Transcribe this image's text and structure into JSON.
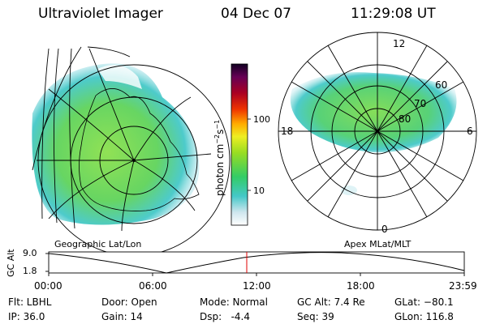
{
  "header": {
    "instrument": "Ultraviolet Imager",
    "date": "04 Dec 07",
    "time": "11:29:08 UT"
  },
  "colorbar": {
    "unit_label": "photon cm",
    "unit_exp1": "−2",
    "unit_mid": "s",
    "unit_exp2": "−1",
    "ticks": [
      {
        "label": "100",
        "value": 100
      },
      {
        "label": "10",
        "value": 10
      }
    ]
  },
  "left_panel": {
    "title": "Geographic Lat/Lon"
  },
  "right_panel": {
    "title": "Apex MLat/MLT",
    "mlt_labels": {
      "top": "12",
      "bottom": "0",
      "left": "18",
      "right": "6"
    },
    "lat_labels": [
      "60",
      "70",
      "80"
    ]
  },
  "altitude_plot": {
    "ylabel": "GC Alt",
    "y_ticks": [
      "9.0",
      "1.8"
    ],
    "x_ticks": [
      "00:00",
      "06:00",
      "12:00",
      "18:00",
      "23:59"
    ],
    "marker_time": "11:29"
  },
  "info": {
    "filter": "Flt: LBHL",
    "ip": "IP: 36.0",
    "door": "Door: Open",
    "gain": "Gain: 14",
    "mode": "Mode: Normal",
    "dsp": "Dsp:   -4.4",
    "gc_alt": "GC Alt: 7.4 Re",
    "seq": "Seq: 39",
    "glat": "GLat: −80.1",
    "glon": "GLon: 116.8"
  },
  "colors": {
    "marker": "#e00000",
    "aurora_main": "#5fd35a",
    "aurora_edge": "#44c8c8"
  }
}
